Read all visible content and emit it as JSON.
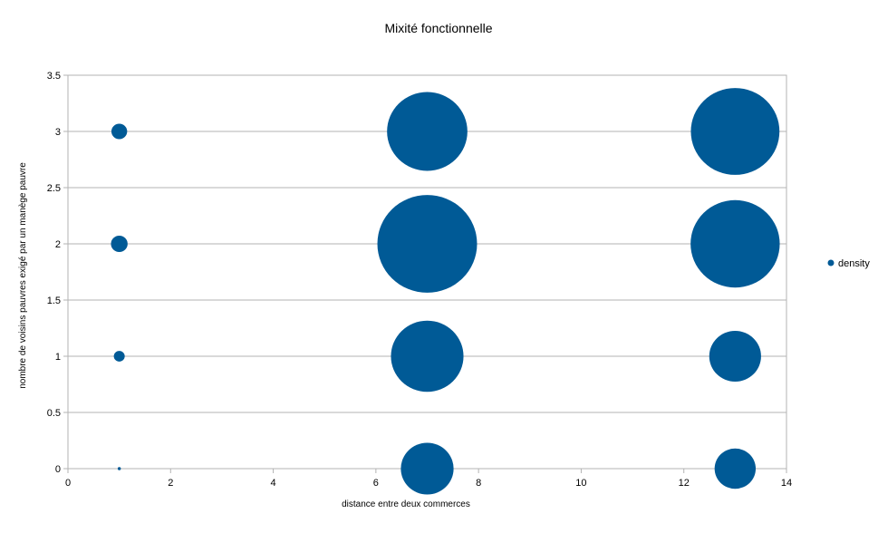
{
  "chart_data": {
    "type": "scatter",
    "subtype": "bubble",
    "title": "Mixité fonctionnelle",
    "xlabel": "distance entre deux commerces",
    "ylabel": "nombre de voisins pauvres exigé par un manège pauvre",
    "xlim": [
      0,
      14
    ],
    "ylim": [
      0,
      3.5
    ],
    "x_ticks": [
      0,
      2,
      4,
      6,
      8,
      10,
      12,
      14
    ],
    "y_ticks": [
      0,
      0.5,
      1,
      1.5,
      2,
      2.5,
      3,
      3.5
    ],
    "x_tick_labels": [
      "0",
      "2",
      "4",
      "6",
      "8",
      "10",
      "12",
      "14"
    ],
    "y_tick_labels": [
      "0",
      "0.5",
      "1",
      "1.5",
      "2",
      "2.5",
      "3",
      "3.5"
    ],
    "grid": "horizontal",
    "legend_position": "right",
    "color": "#005a96",
    "series": [
      {
        "name": "density",
        "points": [
          {
            "x": 1,
            "y": 0,
            "size": 0.1
          },
          {
            "x": 1,
            "y": 1,
            "size": 1.2
          },
          {
            "x": 1,
            "y": 2,
            "size": 2.8
          },
          {
            "x": 1,
            "y": 3,
            "size": 2.5
          },
          {
            "x": 7,
            "y": 0,
            "size": 28
          },
          {
            "x": 7,
            "y": 1,
            "size": 53
          },
          {
            "x": 7,
            "y": 2,
            "size": 100
          },
          {
            "x": 7,
            "y": 3,
            "size": 65
          },
          {
            "x": 13,
            "y": 0,
            "size": 17
          },
          {
            "x": 13,
            "y": 1,
            "size": 27
          },
          {
            "x": 13,
            "y": 2,
            "size": 80
          },
          {
            "x": 13,
            "y": 3,
            "size": 79
          }
        ]
      }
    ]
  }
}
